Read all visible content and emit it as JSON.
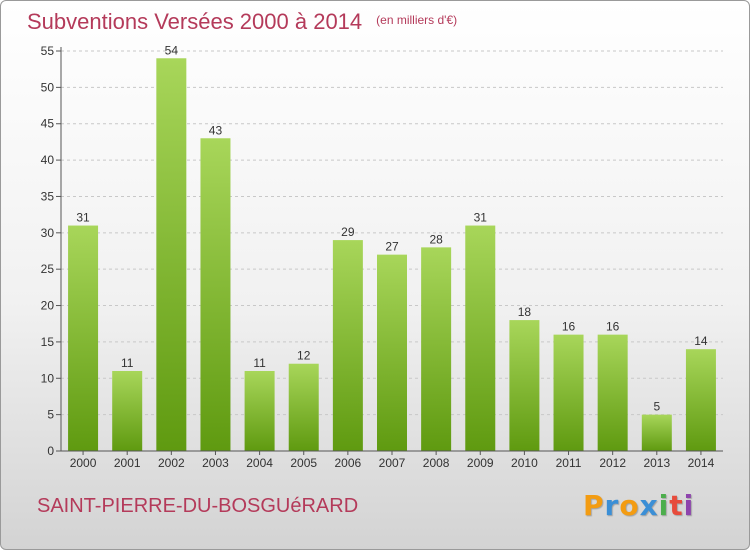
{
  "header": {
    "title": "Subventions Versées 2000 à 2014",
    "subtitle": "(en milliers d'€)"
  },
  "footer": {
    "commune": "SAINT-PIERRE-DU-BOSGUéRARD",
    "brand": "Proxiti",
    "brand_colors": [
      "#f39c12",
      "#3b8fd6",
      "#f39c12",
      "#3b8fd6",
      "#4cae4c",
      "#e74c3c",
      "#8e44ad"
    ]
  },
  "colors": {
    "bar_light": "#a8d65a",
    "bar_dark": "#5f9a10",
    "axis": "#555555",
    "grid": "#c8c8c8",
    "text": "#333333"
  },
  "chart_data": {
    "type": "bar",
    "title": "Subventions Versées 2000 à 2014",
    "subtitle": "(en milliers d'€)",
    "xlabel": "",
    "ylabel": "",
    "categories": [
      "2000",
      "2001",
      "2002",
      "2003",
      "2004",
      "2005",
      "2006",
      "2007",
      "2008",
      "2009",
      "2010",
      "2011",
      "2012",
      "2013",
      "2014"
    ],
    "values": [
      31,
      11,
      54,
      43,
      11,
      12,
      29,
      27,
      28,
      31,
      18,
      16,
      16,
      5,
      14
    ],
    "ylim": [
      0,
      55
    ],
    "yticks": [
      0,
      5,
      10,
      15,
      20,
      25,
      30,
      35,
      40,
      45,
      50,
      55
    ],
    "grid": true,
    "legend": "none",
    "data_labels": true
  }
}
